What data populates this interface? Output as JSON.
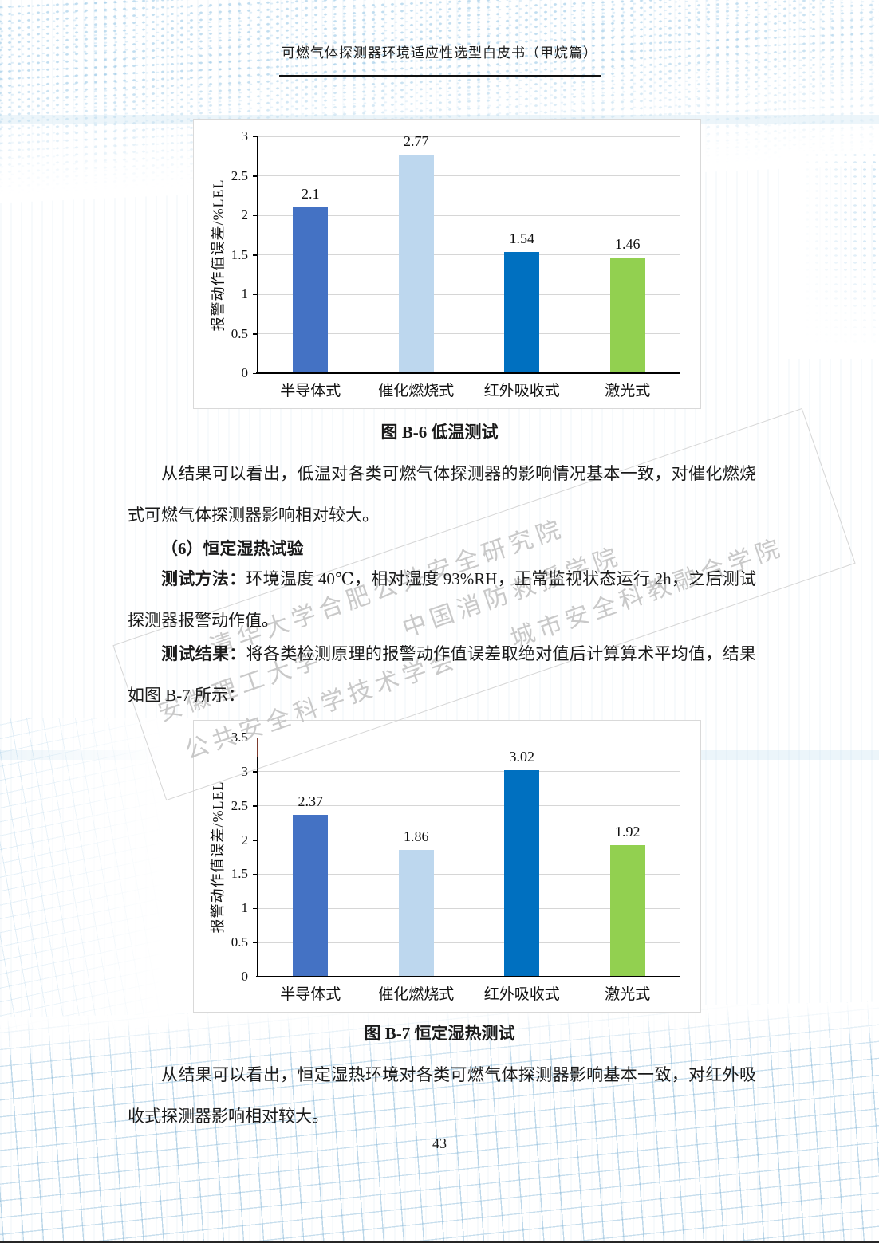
{
  "page": {
    "header_title": "可燃气体探测器环境适应性选型白皮书（甲烷篇）",
    "page_number": "43"
  },
  "watermark": {
    "rows": [
      "清华大学合肥公共安全研究院",
      "安徽理工大学　　　中国消防救援学院",
      "公共安全科学技术学会　　城市安全科教融合学院"
    ]
  },
  "sections": {
    "caption_b6": "图 B-6 低温测试",
    "para_after_b6": "从结果可以看出，低温对各类可燃气体探测器的影响情况基本一致，对催化燃烧式可燃气体探测器影响相对较大。",
    "heading_6": "（6）恒定湿热试验",
    "method_label": "测试方法：",
    "method_text": "环境温度 40℃，相对湿度 93%RH，正常监视状态运行 2h，之后测试探测器报警动作值。",
    "result_label": "测试结果：",
    "result_text": "将各类检测原理的报警动作值误差取绝对值后计算算术平均值，结果如图 B-7 所示：",
    "caption_b7": "图 B-7 恒定湿热测试",
    "para_after_b7": "从结果可以看出，恒定湿热环境对各类可燃气体探测器影响基本一致，对红外吸收式探测器影响相对较大。"
  },
  "colors": {
    "grid": "#d6d6d6",
    "axis": "#000000",
    "chart_border": "#d9d9d9",
    "watermark": "#c0c0c0",
    "red_mark": "#7a3b2e"
  },
  "chart_data": [
    {
      "type": "bar",
      "title": "图 B-6 低温测试",
      "categories": [
        "半导体式",
        "催化燃烧式",
        "红外吸收式",
        "激光式"
      ],
      "values": [
        2.1,
        2.77,
        1.54,
        1.46
      ],
      "value_labels": [
        "2.1",
        "2.77",
        "1.54",
        "1.46"
      ],
      "bar_colors": [
        "#4472C4",
        "#BDD7EE",
        "#0070C0",
        "#92D050"
      ],
      "ylabel": "报警动作值误差/%LEL",
      "xlabel": "",
      "ylim": [
        0,
        3
      ],
      "yticks": [
        0,
        0.5,
        1,
        1.5,
        2,
        2.5,
        3
      ],
      "ytick_labels": [
        "0",
        "0.5",
        "1",
        "1.5",
        "2",
        "2.5",
        "3"
      ],
      "grid": true,
      "legend_position": "none",
      "red_mark": false
    },
    {
      "type": "bar",
      "title": "图 B-7 恒定湿热测试",
      "categories": [
        "半导体式",
        "催化燃烧式",
        "红外吸收式",
        "激光式"
      ],
      "values": [
        2.37,
        1.86,
        3.02,
        1.92
      ],
      "value_labels": [
        "2.37",
        "1.86",
        "3.02",
        "1.92"
      ],
      "bar_colors": [
        "#4472C4",
        "#BDD7EE",
        "#0070C0",
        "#92D050"
      ],
      "ylabel": "报警动作值误差/%LEL",
      "xlabel": "",
      "ylim": [
        0,
        3.5
      ],
      "yticks": [
        0,
        0.5,
        1,
        1.5,
        2,
        2.5,
        3,
        3.5
      ],
      "ytick_labels": [
        "0",
        "0.5",
        "1",
        "1.5",
        "2",
        "2.5",
        "3",
        "3.5"
      ],
      "grid": true,
      "legend_position": "none",
      "red_mark": true
    }
  ]
}
